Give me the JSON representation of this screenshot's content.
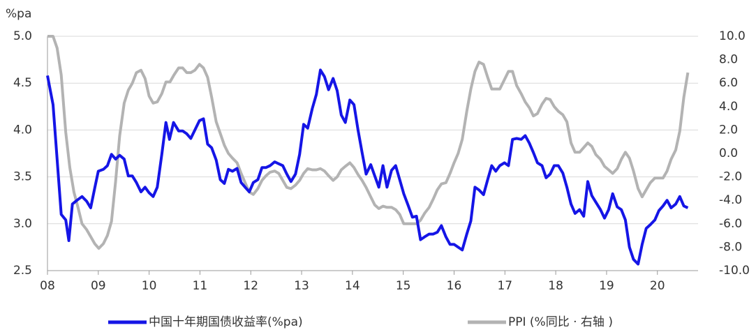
{
  "chart_data": {
    "type": "line",
    "y_unit_label": "%pa",
    "xlim": [
      2008,
      2020.8
    ],
    "xticks": [
      {
        "value": 2008,
        "label": "08"
      },
      {
        "value": 2009,
        "label": "09"
      },
      {
        "value": 2010,
        "label": "10"
      },
      {
        "value": 2011,
        "label": "11"
      },
      {
        "value": 2012,
        "label": "12"
      },
      {
        "value": 2013,
        "label": "13"
      },
      {
        "value": 2014,
        "label": "14"
      },
      {
        "value": 2015,
        "label": "15"
      },
      {
        "value": 2016,
        "label": "16"
      },
      {
        "value": 2017,
        "label": "17"
      },
      {
        "value": 2018,
        "label": "18"
      },
      {
        "value": 2019,
        "label": "19"
      },
      {
        "value": 2020,
        "label": "20"
      }
    ],
    "ylim": [
      2.5,
      5.0
    ],
    "yticks": [
      2.5,
      {
        "value": 3,
        "label": "3.0"
      },
      3.5,
      {
        "value": 4,
        "label": "4.0"
      },
      4.5,
      {
        "value": 5,
        "label": "5.0"
      }
    ],
    "y2lim": [
      -10,
      10
    ],
    "y2ticks": [
      {
        "value": -10,
        "label": "-10.0"
      },
      {
        "value": -8,
        "label": "-8.0"
      },
      {
        "value": -6,
        "label": "-6.0"
      },
      {
        "value": -4,
        "label": "-4.0"
      },
      {
        "value": -2,
        "label": "-2.0"
      },
      {
        "value": 0,
        "label": "0.0"
      },
      {
        "value": 2,
        "label": "2.0"
      },
      {
        "value": 4,
        "label": "4.0"
      },
      {
        "value": 6,
        "label": "6.0"
      },
      {
        "value": 8,
        "label": "8.0"
      },
      {
        "value": 10,
        "label": "10.0"
      }
    ],
    "grid": true,
    "legend": "bottom",
    "series": [
      {
        "name": "中国十年期国债收益率(%pa)",
        "color": "#1515e6",
        "x": [
          2008.0,
          2008.11,
          2008.27,
          2008.36,
          2008.42,
          2008.49,
          2008.58,
          2008.68,
          2008.77,
          2008.85,
          2008.93,
          2009.0,
          2009.1,
          2009.18,
          2009.26,
          2009.34,
          2009.42,
          2009.51,
          2009.59,
          2009.67,
          2009.75,
          2009.84,
          2009.92,
          2010.0,
          2010.08,
          2010.16,
          2010.25,
          2010.33,
          2010.4,
          2010.48,
          2010.58,
          2010.66,
          2010.74,
          2010.82,
          2010.9,
          2010.99,
          2011.07,
          2011.15,
          2011.23,
          2011.32,
          2011.4,
          2011.48,
          2011.56,
          2011.64,
          2011.73,
          2011.81,
          2011.89,
          2011.97,
          2012.05,
          2012.14,
          2012.22,
          2012.3,
          2012.38,
          2012.47,
          2012.55,
          2012.63,
          2012.71,
          2012.79,
          2012.88,
          2012.96,
          2013.04,
          2013.12,
          2013.21,
          2013.29,
          2013.37,
          2013.45,
          2013.53,
          2013.62,
          2013.7,
          2013.78,
          2013.86,
          2013.95,
          2014.03,
          2014.11,
          2014.19,
          2014.27,
          2014.36,
          2014.44,
          2014.52,
          2014.6,
          2014.68,
          2014.77,
          2014.85,
          2014.93,
          2015.01,
          2015.1,
          2015.18,
          2015.26,
          2015.34,
          2015.42,
          2015.51,
          2015.59,
          2015.67,
          2015.75,
          2015.84,
          2015.92,
          2016.0,
          2016.08,
          2016.16,
          2016.25,
          2016.33,
          2016.41,
          2016.49,
          2016.58,
          2016.66,
          2016.74,
          2016.82,
          2016.9,
          2016.99,
          2017.07,
          2017.15,
          2017.23,
          2017.32,
          2017.4,
          2017.48,
          2017.56,
          2017.64,
          2017.73,
          2017.81,
          2017.89,
          2017.97,
          2018.05,
          2018.14,
          2018.22,
          2018.3,
          2018.38,
          2018.47,
          2018.55,
          2018.63,
          2018.71,
          2018.79,
          2018.88,
          2018.96,
          2019.04,
          2019.12,
          2019.21,
          2019.29,
          2019.37,
          2019.45,
          2019.53,
          2019.62,
          2019.7,
          2019.78,
          2019.86,
          2019.95,
          2020.03,
          2020.11,
          2020.19,
          2020.27,
          2020.36,
          2020.44,
          2020.52,
          2020.6
        ],
        "values": [
          4.58,
          4.27,
          3.1,
          3.04,
          2.82,
          3.21,
          3.25,
          3.29,
          3.24,
          3.17,
          3.38,
          3.56,
          3.58,
          3.62,
          3.74,
          3.69,
          3.73,
          3.69,
          3.51,
          3.51,
          3.44,
          3.34,
          3.39,
          3.33,
          3.29,
          3.39,
          3.74,
          4.08,
          3.9,
          4.08,
          3.99,
          3.99,
          3.96,
          3.91,
          4.0,
          4.1,
          4.12,
          3.85,
          3.81,
          3.68,
          3.47,
          3.43,
          3.58,
          3.56,
          3.59,
          3.44,
          3.39,
          3.34,
          3.44,
          3.47,
          3.6,
          3.6,
          3.62,
          3.66,
          3.64,
          3.62,
          3.53,
          3.45,
          3.53,
          3.74,
          4.06,
          4.02,
          4.23,
          4.38,
          4.64,
          4.57,
          4.43,
          4.55,
          4.42,
          4.16,
          4.08,
          4.32,
          4.27,
          4.0,
          3.76,
          3.53,
          3.63,
          3.51,
          3.39,
          3.62,
          3.39,
          3.57,
          3.62,
          3.47,
          3.32,
          3.19,
          3.07,
          3.08,
          2.83,
          2.86,
          2.89,
          2.89,
          2.91,
          2.98,
          2.86,
          2.78,
          2.78,
          2.75,
          2.72,
          2.89,
          3.03,
          3.39,
          3.36,
          3.31,
          3.47,
          3.62,
          3.56,
          3.62,
          3.65,
          3.62,
          3.9,
          3.91,
          3.9,
          3.94,
          3.86,
          3.76,
          3.65,
          3.62,
          3.49,
          3.53,
          3.62,
          3.62,
          3.54,
          3.39,
          3.21,
          3.11,
          3.15,
          3.08,
          3.45,
          3.3,
          3.23,
          3.15,
          3.06,
          3.15,
          3.32,
          3.18,
          3.15,
          3.04,
          2.75,
          2.62,
          2.57,
          2.78,
          2.95,
          2.99,
          3.04,
          3.14,
          3.19,
          3.25,
          3.17,
          3.21,
          3.29,
          3.19,
          3.17
        ]
      },
      {
        "name": "PPI (%同比 · 右轴 )",
        "color": "#b3b3b3",
        "axis": "y2",
        "x": [
          2008.0,
          2008.11,
          2008.19,
          2008.27,
          2008.36,
          2008.44,
          2008.52,
          2008.6,
          2008.68,
          2008.77,
          2008.85,
          2008.93,
          2009.01,
          2009.1,
          2009.18,
          2009.26,
          2009.34,
          2009.42,
          2009.51,
          2009.59,
          2009.67,
          2009.75,
          2009.84,
          2009.92,
          2010.0,
          2010.08,
          2010.16,
          2010.25,
          2010.33,
          2010.41,
          2010.49,
          2010.58,
          2010.66,
          2010.74,
          2010.82,
          2010.9,
          2010.99,
          2011.07,
          2011.15,
          2011.23,
          2011.32,
          2011.4,
          2011.48,
          2011.56,
          2011.64,
          2011.73,
          2011.81,
          2011.89,
          2011.97,
          2012.05,
          2012.14,
          2012.22,
          2012.3,
          2012.38,
          2012.47,
          2012.55,
          2012.63,
          2012.71,
          2012.79,
          2012.88,
          2012.96,
          2013.04,
          2013.12,
          2013.21,
          2013.29,
          2013.37,
          2013.45,
          2013.53,
          2013.62,
          2013.7,
          2013.78,
          2013.86,
          2013.95,
          2014.03,
          2014.11,
          2014.19,
          2014.27,
          2014.36,
          2014.44,
          2014.52,
          2014.6,
          2014.68,
          2014.77,
          2014.85,
          2014.93,
          2015.01,
          2015.1,
          2015.18,
          2015.26,
          2015.34,
          2015.42,
          2015.51,
          2015.59,
          2015.67,
          2015.75,
          2015.84,
          2015.92,
          2016.0,
          2016.08,
          2016.16,
          2016.25,
          2016.33,
          2016.41,
          2016.49,
          2016.58,
          2016.66,
          2016.74,
          2016.82,
          2016.9,
          2016.99,
          2017.07,
          2017.15,
          2017.23,
          2017.32,
          2017.4,
          2017.48,
          2017.56,
          2017.64,
          2017.73,
          2017.81,
          2017.89,
          2017.97,
          2018.05,
          2018.14,
          2018.22,
          2018.3,
          2018.38,
          2018.47,
          2018.55,
          2018.63,
          2018.71,
          2018.79,
          2018.88,
          2018.96,
          2019.04,
          2019.12,
          2019.21,
          2019.29,
          2019.37,
          2019.45,
          2019.53,
          2019.62,
          2019.7,
          2019.78,
          2019.86,
          2019.95,
          2020.03,
          2020.11,
          2020.19,
          2020.27,
          2020.36,
          2020.44,
          2020.52,
          2020.6
        ],
        "values": [
          10.0,
          10.0,
          9.0,
          6.7,
          1.8,
          -1.2,
          -3.3,
          -4.6,
          -6.0,
          -6.5,
          -7.1,
          -7.7,
          -8.1,
          -7.7,
          -7.0,
          -5.8,
          -2.4,
          1.5,
          4.3,
          5.4,
          6.0,
          6.9,
          7.1,
          6.4,
          4.9,
          4.3,
          4.4,
          5.1,
          6.1,
          6.1,
          6.7,
          7.3,
          7.3,
          6.9,
          6.9,
          7.1,
          7.6,
          7.3,
          6.5,
          4.8,
          2.7,
          1.7,
          0.7,
          0.0,
          -0.4,
          -0.8,
          -1.7,
          -2.5,
          -3.3,
          -3.5,
          -3.0,
          -2.3,
          -1.9,
          -1.6,
          -1.5,
          -1.7,
          -2.3,
          -2.9,
          -3.0,
          -2.7,
          -2.3,
          -1.7,
          -1.3,
          -1.4,
          -1.4,
          -1.3,
          -1.5,
          -1.9,
          -2.3,
          -2.0,
          -1.4,
          -1.1,
          -0.8,
          -1.2,
          -1.8,
          -2.3,
          -2.9,
          -3.7,
          -4.4,
          -4.7,
          -4.5,
          -4.6,
          -4.6,
          -4.8,
          -5.2,
          -6.0,
          -6.0,
          -6.0,
          -6.0,
          -5.7,
          -5.1,
          -4.6,
          -3.9,
          -3.1,
          -2.6,
          -2.5,
          -1.7,
          -0.8,
          0.0,
          1.2,
          3.6,
          5.5,
          7.0,
          7.8,
          7.6,
          6.5,
          5.5,
          5.5,
          5.5,
          6.3,
          7.0,
          7.0,
          5.8,
          5.1,
          4.4,
          3.9,
          3.2,
          3.4,
          4.2,
          4.7,
          4.6,
          4.0,
          3.6,
          3.3,
          2.7,
          0.9,
          0.1,
          0.1,
          0.5,
          0.9,
          0.6,
          -0.1,
          -0.5,
          -1.1,
          -1.4,
          -1.7,
          -1.3,
          -0.5,
          0.1,
          -0.4,
          -1.5,
          -3.0,
          -3.7,
          -3.1,
          -2.5,
          -2.1,
          -2.1,
          -2.1,
          -1.5,
          -0.5,
          0.3,
          1.9,
          4.8,
          6.9
        ]
      }
    ]
  }
}
